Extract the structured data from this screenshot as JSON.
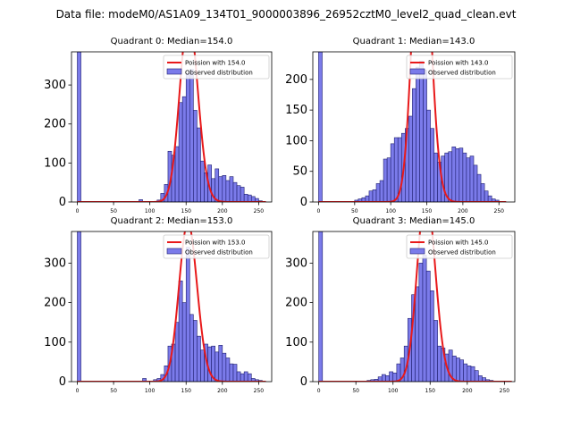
{
  "figure": {
    "suptitle": "Data file: modeM0/AS1A09_134T01_9000003896_26952cztM0_level2_quad_clean.evt"
  },
  "colors": {
    "bar_fill": "#7b7bea",
    "bar_edge": "#1e1e6e",
    "poisson_line": "#e8191a",
    "axis": "#000000",
    "background": "#ffffff"
  },
  "chart_data": [
    {
      "type": "histogram",
      "title": "Quadrant 0: Median=154.0",
      "median": 154.0,
      "bin_width": 5,
      "xlim": [
        -8,
        268
      ],
      "ylim": [
        0,
        385
      ],
      "xticks": [
        0,
        50,
        100,
        150,
        200,
        250
      ],
      "yticks": [
        0,
        100,
        200,
        300
      ],
      "legend": [
        "Poission with 154.0",
        "Observed distribution"
      ],
      "legend_position": "top-right",
      "bins": [
        {
          "x": 0,
          "y": 385
        },
        {
          "x": 85,
          "y": 6
        },
        {
          "x": 110,
          "y": 5
        },
        {
          "x": 115,
          "y": 22
        },
        {
          "x": 120,
          "y": 45
        },
        {
          "x": 125,
          "y": 130
        },
        {
          "x": 130,
          "y": 120
        },
        {
          "x": 135,
          "y": 142
        },
        {
          "x": 140,
          "y": 255
        },
        {
          "x": 145,
          "y": 270
        },
        {
          "x": 150,
          "y": 330
        },
        {
          "x": 155,
          "y": 340
        },
        {
          "x": 160,
          "y": 235
        },
        {
          "x": 165,
          "y": 190
        },
        {
          "x": 170,
          "y": 105
        },
        {
          "x": 175,
          "y": 75
        },
        {
          "x": 180,
          "y": 95
        },
        {
          "x": 185,
          "y": 60
        },
        {
          "x": 190,
          "y": 85
        },
        {
          "x": 195,
          "y": 65
        },
        {
          "x": 200,
          "y": 68
        },
        {
          "x": 205,
          "y": 55
        },
        {
          "x": 210,
          "y": 65
        },
        {
          "x": 215,
          "y": 50
        },
        {
          "x": 220,
          "y": 42
        },
        {
          "x": 225,
          "y": 38
        },
        {
          "x": 230,
          "y": 20
        },
        {
          "x": 235,
          "y": 18
        },
        {
          "x": 240,
          "y": 14
        },
        {
          "x": 245,
          "y": 9
        },
        {
          "x": 250,
          "y": 3
        }
      ]
    },
    {
      "type": "histogram",
      "title": "Quadrant 1: Median=143.0",
      "median": 143.0,
      "bin_width": 5,
      "xlim": [
        -8,
        272
      ],
      "ylim": [
        0,
        245
      ],
      "xticks": [
        0,
        50,
        100,
        150,
        200,
        250
      ],
      "yticks": [
        0,
        50,
        100,
        150,
        200
      ],
      "legend": [
        "Poission with 143.0",
        "Observed distribution"
      ],
      "legend_position": "top-right",
      "bins": [
        {
          "x": 0,
          "y": 245
        },
        {
          "x": 50,
          "y": 3
        },
        {
          "x": 55,
          "y": 5
        },
        {
          "x": 60,
          "y": 7
        },
        {
          "x": 65,
          "y": 10
        },
        {
          "x": 70,
          "y": 18
        },
        {
          "x": 75,
          "y": 20
        },
        {
          "x": 80,
          "y": 30
        },
        {
          "x": 85,
          "y": 35
        },
        {
          "x": 90,
          "y": 70
        },
        {
          "x": 95,
          "y": 72
        },
        {
          "x": 100,
          "y": 95
        },
        {
          "x": 105,
          "y": 105
        },
        {
          "x": 110,
          "y": 105
        },
        {
          "x": 115,
          "y": 112
        },
        {
          "x": 120,
          "y": 120
        },
        {
          "x": 125,
          "y": 140
        },
        {
          "x": 130,
          "y": 185
        },
        {
          "x": 135,
          "y": 220
        },
        {
          "x": 140,
          "y": 230
        },
        {
          "x": 145,
          "y": 215
        },
        {
          "x": 150,
          "y": 150
        },
        {
          "x": 155,
          "y": 120
        },
        {
          "x": 160,
          "y": 80
        },
        {
          "x": 165,
          "y": 65
        },
        {
          "x": 170,
          "y": 75
        },
        {
          "x": 175,
          "y": 80
        },
        {
          "x": 180,
          "y": 82
        },
        {
          "x": 185,
          "y": 90
        },
        {
          "x": 190,
          "y": 87
        },
        {
          "x": 195,
          "y": 88
        },
        {
          "x": 200,
          "y": 80
        },
        {
          "x": 205,
          "y": 72
        },
        {
          "x": 210,
          "y": 75
        },
        {
          "x": 215,
          "y": 60
        },
        {
          "x": 220,
          "y": 45
        },
        {
          "x": 225,
          "y": 30
        },
        {
          "x": 230,
          "y": 18
        },
        {
          "x": 235,
          "y": 10
        },
        {
          "x": 240,
          "y": 5
        },
        {
          "x": 245,
          "y": 3
        }
      ]
    },
    {
      "type": "histogram",
      "title": "Quadrant 2: Median=153.0",
      "median": 153.0,
      "bin_width": 5,
      "xlim": [
        -8,
        268
      ],
      "ylim": [
        0,
        380
      ],
      "xticks": [
        0,
        50,
        100,
        150,
        200,
        250
      ],
      "yticks": [
        0,
        100,
        200,
        300
      ],
      "legend": [
        "Poission with 153.0",
        "Observed distribution"
      ],
      "legend_position": "top-right",
      "bins": [
        {
          "x": 0,
          "y": 380
        },
        {
          "x": 90,
          "y": 8
        },
        {
          "x": 105,
          "y": 5
        },
        {
          "x": 110,
          "y": 8
        },
        {
          "x": 115,
          "y": 18
        },
        {
          "x": 120,
          "y": 40
        },
        {
          "x": 125,
          "y": 90
        },
        {
          "x": 130,
          "y": 95
        },
        {
          "x": 135,
          "y": 150
        },
        {
          "x": 140,
          "y": 255
        },
        {
          "x": 145,
          "y": 200
        },
        {
          "x": 150,
          "y": 340
        },
        {
          "x": 155,
          "y": 170
        },
        {
          "x": 160,
          "y": 155
        },
        {
          "x": 165,
          "y": 115
        },
        {
          "x": 170,
          "y": 80
        },
        {
          "x": 175,
          "y": 95
        },
        {
          "x": 180,
          "y": 88
        },
        {
          "x": 185,
          "y": 90
        },
        {
          "x": 190,
          "y": 75
        },
        {
          "x": 195,
          "y": 92
        },
        {
          "x": 200,
          "y": 72
        },
        {
          "x": 205,
          "y": 60
        },
        {
          "x": 210,
          "y": 45
        },
        {
          "x": 215,
          "y": 44
        },
        {
          "x": 220,
          "y": 25
        },
        {
          "x": 225,
          "y": 20
        },
        {
          "x": 230,
          "y": 25
        },
        {
          "x": 235,
          "y": 20
        },
        {
          "x": 240,
          "y": 8
        },
        {
          "x": 245,
          "y": 5
        },
        {
          "x": 250,
          "y": 3
        }
      ]
    },
    {
      "type": "histogram",
      "title": "Quadrant 3: Median=145.0",
      "median": 145.0,
      "bin_width": 5,
      "xlim": [
        -8,
        264
      ],
      "ylim": [
        0,
        380
      ],
      "xticks": [
        0,
        50,
        100,
        150,
        200,
        250
      ],
      "yticks": [
        0,
        100,
        200,
        300
      ],
      "legend": [
        "Poission with 145.0",
        "Observed distribution"
      ],
      "legend_position": "top-right",
      "bins": [
        {
          "x": 0,
          "y": 380
        },
        {
          "x": 65,
          "y": 3
        },
        {
          "x": 70,
          "y": 5
        },
        {
          "x": 75,
          "y": 6
        },
        {
          "x": 80,
          "y": 12
        },
        {
          "x": 85,
          "y": 18
        },
        {
          "x": 90,
          "y": 15
        },
        {
          "x": 95,
          "y": 25
        },
        {
          "x": 100,
          "y": 22
        },
        {
          "x": 105,
          "y": 45
        },
        {
          "x": 110,
          "y": 60
        },
        {
          "x": 115,
          "y": 90
        },
        {
          "x": 120,
          "y": 160
        },
        {
          "x": 125,
          "y": 220
        },
        {
          "x": 130,
          "y": 240
        },
        {
          "x": 135,
          "y": 300
        },
        {
          "x": 140,
          "y": 320
        },
        {
          "x": 145,
          "y": 280
        },
        {
          "x": 150,
          "y": 230
        },
        {
          "x": 155,
          "y": 155
        },
        {
          "x": 160,
          "y": 90
        },
        {
          "x": 165,
          "y": 85
        },
        {
          "x": 170,
          "y": 70
        },
        {
          "x": 175,
          "y": 80
        },
        {
          "x": 180,
          "y": 65
        },
        {
          "x": 185,
          "y": 60
        },
        {
          "x": 190,
          "y": 55
        },
        {
          "x": 195,
          "y": 45
        },
        {
          "x": 200,
          "y": 40
        },
        {
          "x": 205,
          "y": 38
        },
        {
          "x": 210,
          "y": 28
        },
        {
          "x": 215,
          "y": 15
        },
        {
          "x": 220,
          "y": 10
        },
        {
          "x": 225,
          "y": 5
        },
        {
          "x": 230,
          "y": 3
        }
      ]
    }
  ]
}
